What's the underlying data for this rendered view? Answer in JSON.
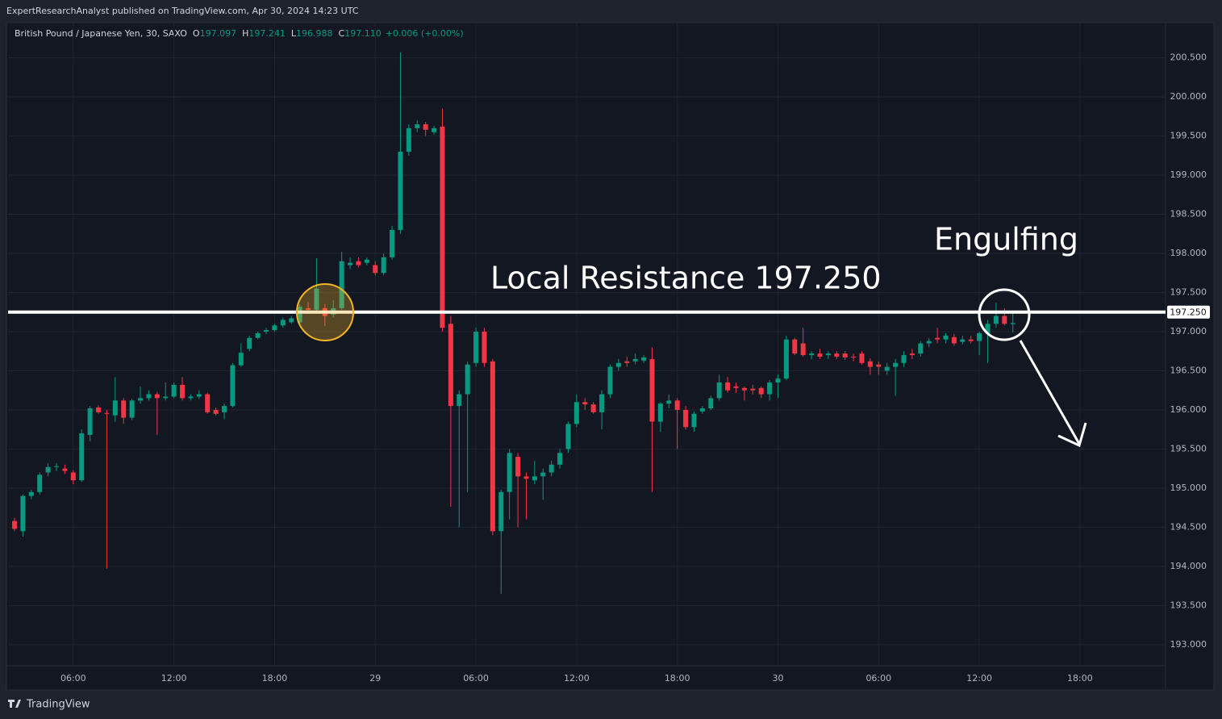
{
  "top_bar": {
    "text": "ExpertResearchAnalyst published on TradingView.com, Apr 30, 2024 14:23 UTC"
  },
  "legend": {
    "symbol": "British Pound / Japanese Yen, 30, SAXO",
    "ohlc": [
      {
        "key": "O",
        "text": "197.097"
      },
      {
        "key": "H",
        "text": "197.241"
      },
      {
        "key": "L",
        "text": "196.988"
      },
      {
        "key": "C",
        "text": "197.110"
      }
    ],
    "change": "+0.006 (+0.00%)"
  },
  "footer": {
    "brand": "TradingView"
  },
  "chart_data": {
    "type": "candlestick",
    "up_color": "#089981",
    "down_color": "#f23645",
    "grid": true,
    "open": [
      194.58,
      194.45,
      194.9,
      194.95,
      195.2,
      195.27,
      195.25,
      195.2,
      195.1,
      195.68,
      196.03,
      195.96,
      195.93,
      196.12,
      195.9,
      196.12,
      196.15,
      196.2,
      196.15,
      196.17,
      196.32,
      196.15,
      196.17,
      196.2,
      196.0,
      195.97,
      196.05,
      196.57,
      196.78,
      196.92,
      197.0,
      197.02,
      197.08,
      197.12,
      197.12,
      197.3,
      197.28,
      197.3,
      197.22,
      197.3,
      197.85,
      197.9,
      197.88,
      197.85,
      197.75,
      197.95,
      198.3,
      199.3,
      199.6,
      199.65,
      199.55,
      199.62,
      197.1,
      196.05,
      196.2,
      196.6,
      197.0,
      196.62,
      194.45,
      194.95,
      195.4,
      195.15,
      195.1,
      195.15,
      195.2,
      195.3,
      195.5,
      195.82,
      196.1,
      196.07,
      195.97,
      196.2,
      196.55,
      196.62,
      196.62,
      196.63,
      196.65,
      195.85,
      196.08,
      196.12,
      196.0,
      195.78,
      195.98,
      196.02,
      196.15,
      196.35,
      196.3,
      196.28,
      196.27,
      196.28,
      196.2,
      196.35,
      196.4,
      196.9,
      196.85,
      196.7,
      196.72,
      196.7,
      196.72,
      196.72,
      196.68,
      196.72,
      196.62,
      196.58,
      196.5,
      196.55,
      196.6,
      196.72,
      196.72,
      196.85,
      196.92,
      196.9,
      196.93,
      196.87,
      196.9,
      196.88,
      196.98,
      197.1,
      197.2,
      197.097
    ],
    "high": [
      194.62,
      194.92,
      194.98,
      195.2,
      195.32,
      195.32,
      195.3,
      195.23,
      195.75,
      196.05,
      196.06,
      196.0,
      196.42,
      196.15,
      196.14,
      196.3,
      196.25,
      196.23,
      196.35,
      196.35,
      196.42,
      196.2,
      196.25,
      196.22,
      196.03,
      196.08,
      196.6,
      196.85,
      196.95,
      197.0,
      197.05,
      197.1,
      197.18,
      197.2,
      197.35,
      197.38,
      197.94,
      197.35,
      197.4,
      198.02,
      197.95,
      197.95,
      197.95,
      197.9,
      198.0,
      198.35,
      200.57,
      199.65,
      199.7,
      199.68,
      199.63,
      199.85,
      197.2,
      196.25,
      196.62,
      197.05,
      197.05,
      196.65,
      194.98,
      195.5,
      195.45,
      195.2,
      195.35,
      195.25,
      195.35,
      195.5,
      195.85,
      196.2,
      196.15,
      196.1,
      196.25,
      196.58,
      196.65,
      196.68,
      196.72,
      196.7,
      196.8,
      196.1,
      196.2,
      196.15,
      196.05,
      195.98,
      196.05,
      196.18,
      196.45,
      196.42,
      196.35,
      196.3,
      196.32,
      196.3,
      196.38,
      196.45,
      196.95,
      196.92,
      197.05,
      196.75,
      196.78,
      196.75,
      196.75,
      196.75,
      196.72,
      196.75,
      196.66,
      196.62,
      196.6,
      196.65,
      196.75,
      196.78,
      196.88,
      196.92,
      197.05,
      196.98,
      196.97,
      196.95,
      196.95,
      197.0,
      197.15,
      197.37,
      197.3,
      197.241
    ],
    "low": [
      194.45,
      194.38,
      194.86,
      194.92,
      195.15,
      195.22,
      195.18,
      195.05,
      195.08,
      195.6,
      195.95,
      193.97,
      195.85,
      195.82,
      195.87,
      196.08,
      196.12,
      195.68,
      196.12,
      196.15,
      196.12,
      196.12,
      196.14,
      195.95,
      195.93,
      195.88,
      196.03,
      196.55,
      196.75,
      196.9,
      196.97,
      197.0,
      197.05,
      197.1,
      197.1,
      197.26,
      197.25,
      197.07,
      197.18,
      197.28,
      197.8,
      197.82,
      197.85,
      197.72,
      197.72,
      197.92,
      198.25,
      199.25,
      199.55,
      199.5,
      199.52,
      197.0,
      194.76,
      194.5,
      194.95,
      196.55,
      196.55,
      194.4,
      193.65,
      194.6,
      194.5,
      194.6,
      195.05,
      194.85,
      195.15,
      195.25,
      195.45,
      195.78,
      196.0,
      195.95,
      195.75,
      196.15,
      196.5,
      196.55,
      196.58,
      196.6,
      194.95,
      195.72,
      196.02,
      195.5,
      195.75,
      195.72,
      195.95,
      196.0,
      196.12,
      196.22,
      196.22,
      196.12,
      196.2,
      196.15,
      196.12,
      196.15,
      196.38,
      196.7,
      196.68,
      196.65,
      196.65,
      196.65,
      196.65,
      196.64,
      196.62,
      196.58,
      196.45,
      196.45,
      196.45,
      196.18,
      196.55,
      196.65,
      196.68,
      196.8,
      196.85,
      196.85,
      196.82,
      196.84,
      196.85,
      196.7,
      196.6,
      197.05,
      197.08,
      196.988
    ],
    "close": [
      194.48,
      194.9,
      194.95,
      195.17,
      195.27,
      195.28,
      195.22,
      195.1,
      195.7,
      196.02,
      195.97,
      195.95,
      196.12,
      195.9,
      196.12,
      196.15,
      196.2,
      196.15,
      196.17,
      196.32,
      196.15,
      196.17,
      196.2,
      195.97,
      195.95,
      196.05,
      196.57,
      196.73,
      196.92,
      196.98,
      197.02,
      197.08,
      197.15,
      197.17,
      197.32,
      197.28,
      197.55,
      197.2,
      197.3,
      197.9,
      197.88,
      197.85,
      197.92,
      197.75,
      197.95,
      198.3,
      199.3,
      199.6,
      199.65,
      199.58,
      199.6,
      197.05,
      196.05,
      196.2,
      196.58,
      197.0,
      196.6,
      194.45,
      194.95,
      195.45,
      195.15,
      195.12,
      195.15,
      195.2,
      195.3,
      195.45,
      195.82,
      196.1,
      196.07,
      195.97,
      196.2,
      196.55,
      196.6,
      196.6,
      196.65,
      196.67,
      195.85,
      196.08,
      196.12,
      196.0,
      195.78,
      195.95,
      196.02,
      196.15,
      196.35,
      196.25,
      196.28,
      196.25,
      196.25,
      196.2,
      196.35,
      196.4,
      196.9,
      196.72,
      196.7,
      196.72,
      196.68,
      196.72,
      196.68,
      196.67,
      196.67,
      196.6,
      196.55,
      196.55,
      196.55,
      196.6,
      196.7,
      196.7,
      196.85,
      196.88,
      196.9,
      196.95,
      196.85,
      196.9,
      196.88,
      196.98,
      197.1,
      197.2,
      197.1,
      197.11
    ],
    "xlim": [
      -0.77,
      137.2
    ],
    "xticks": [
      {
        "value": 7,
        "label": "06:00"
      },
      {
        "value": 19,
        "label": "12:00"
      },
      {
        "value": 31,
        "label": "18:00"
      },
      {
        "value": 43,
        "label": "29"
      },
      {
        "value": 55,
        "label": "06:00"
      },
      {
        "value": 67,
        "label": "12:00"
      },
      {
        "value": 79,
        "label": "18:00"
      },
      {
        "value": 91,
        "label": "30"
      },
      {
        "value": 103,
        "label": "06:00"
      },
      {
        "value": 115,
        "label": "12:00"
      },
      {
        "value": 127,
        "label": "18:00"
      }
    ],
    "ylim": [
      192.73,
      200.95
    ],
    "yticks": [
      {
        "value": 193,
        "label": "193.000"
      },
      {
        "value": 193.5,
        "label": "193.500"
      },
      {
        "value": 194,
        "label": "194.000"
      },
      {
        "value": 194.5,
        "label": "194.500"
      },
      {
        "value": 195,
        "label": "195.000"
      },
      {
        "value": 195.5,
        "label": "195.500"
      },
      {
        "value": 196,
        "label": "196.000"
      },
      {
        "value": 196.5,
        "label": "196.500"
      },
      {
        "value": 197,
        "label": "197.000"
      },
      {
        "value": 197.5,
        "label": "197.500"
      },
      {
        "value": 198,
        "label": "198.000"
      },
      {
        "value": 198.5,
        "label": "198.500"
      },
      {
        "value": 199,
        "label": "199.000"
      },
      {
        "value": 199.5,
        "label": "199.500"
      },
      {
        "value": 200,
        "label": "200.000"
      },
      {
        "value": 200.5,
        "label": "200.500"
      }
    ],
    "resistance": {
      "value": 197.25,
      "label": "197.250"
    },
    "annotations": [
      "Local Resistance 197.250",
      "Engulfing"
    ]
  }
}
